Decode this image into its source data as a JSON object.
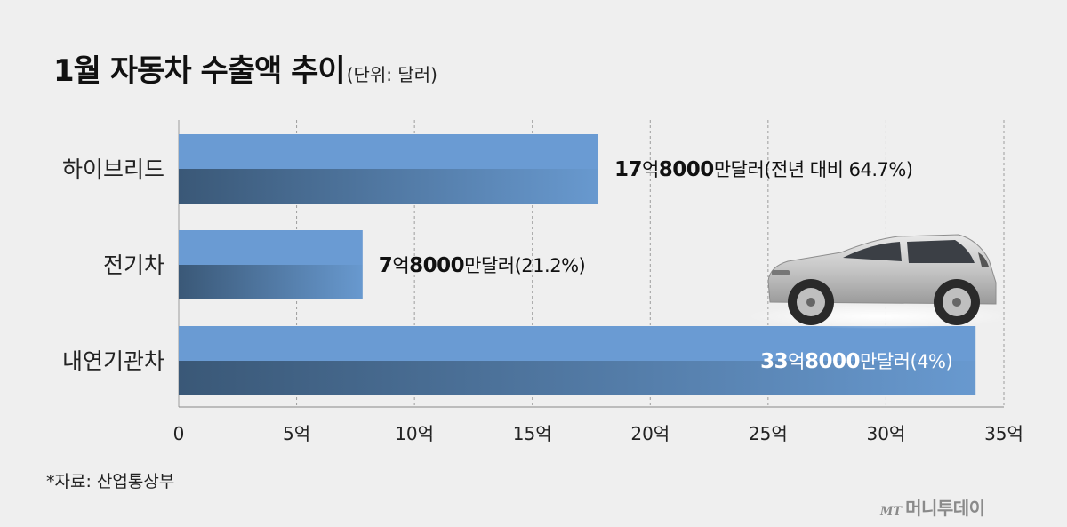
{
  "title": "1월 자동차 수출액 추이",
  "unit_note": "(단위: 달러)",
  "source": "*자료: 산업통상부",
  "logo": {
    "mark": "MT",
    "name": "머니투데이"
  },
  "colors": {
    "bar_light": "#6a9bd3",
    "bar_dark": "#3f5f86",
    "label_dark": "#111111",
    "label_on_bar": "#ffffff",
    "grid": "#9c9c9c"
  },
  "chart_data": {
    "type": "bar",
    "orientation": "horizontal",
    "categories": [
      "하이브리드",
      "전기차",
      "내연기관차"
    ],
    "values": [
      17.8,
      7.8,
      33.8
    ],
    "value_unit": "억 달러",
    "data_labels": [
      {
        "bold_parts": [
          "17",
          "8000"
        ],
        "normal_parts": [
          "억",
          "만달러(전년 대비 64.7%)"
        ]
      },
      {
        "bold_parts": [
          "7",
          "8000"
        ],
        "normal_parts": [
          "억",
          "만달러(21.2%)"
        ]
      },
      {
        "bold_parts": [
          "33",
          "8000"
        ],
        "normal_parts": [
          "억",
          "만달러(4%)"
        ]
      }
    ],
    "xlim": [
      0,
      35
    ],
    "x_ticks": [
      0,
      5,
      10,
      15,
      20,
      25,
      30,
      35
    ],
    "x_tick_labels": [
      "0",
      "5억",
      "10억",
      "15억",
      "20억",
      "25억",
      "30억",
      "35억"
    ],
    "grid": true,
    "grid_style": "dashed vertical"
  }
}
